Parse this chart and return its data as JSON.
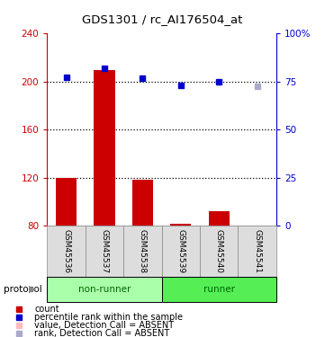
{
  "title": "GDS1301 / rc_AI176504_at",
  "samples": [
    "GSM45536",
    "GSM45537",
    "GSM45538",
    "GSM45539",
    "GSM45540",
    "GSM45541"
  ],
  "bar_values": [
    120,
    210,
    118,
    82,
    92,
    80
  ],
  "bar_bottom": 80,
  "dot_values": [
    204,
    211,
    203,
    197,
    200,
    196
  ],
  "absent_indices": [
    5
  ],
  "ylim": [
    80,
    240
  ],
  "yticks_left": [
    80,
    120,
    160,
    200,
    240
  ],
  "yticks_right": [
    0,
    25,
    50,
    75,
    100
  ],
  "right_axis_labels": [
    "0",
    "25",
    "50",
    "75",
    "100%"
  ],
  "ylabel_left_color": "#cc0000",
  "ylabel_right_color": "#0000cc",
  "dotted_line_values": [
    120,
    160,
    200
  ],
  "bar_color_present": "#cc0000",
  "bar_color_absent": "#ffbbbb",
  "dot_color_present": "#0000cc",
  "dot_color_absent": "#aaaacc",
  "group_label_color": "#006600",
  "non_runner_color": "#aaffaa",
  "runner_color": "#55ee55",
  "legend_items": [
    {
      "label": "count",
      "color": "#cc0000"
    },
    {
      "label": "percentile rank within the sample",
      "color": "#0000cc"
    },
    {
      "label": "value, Detection Call = ABSENT",
      "color": "#ffbbbb"
    },
    {
      "label": "rank, Detection Call = ABSENT",
      "color": "#aaaacc"
    }
  ]
}
